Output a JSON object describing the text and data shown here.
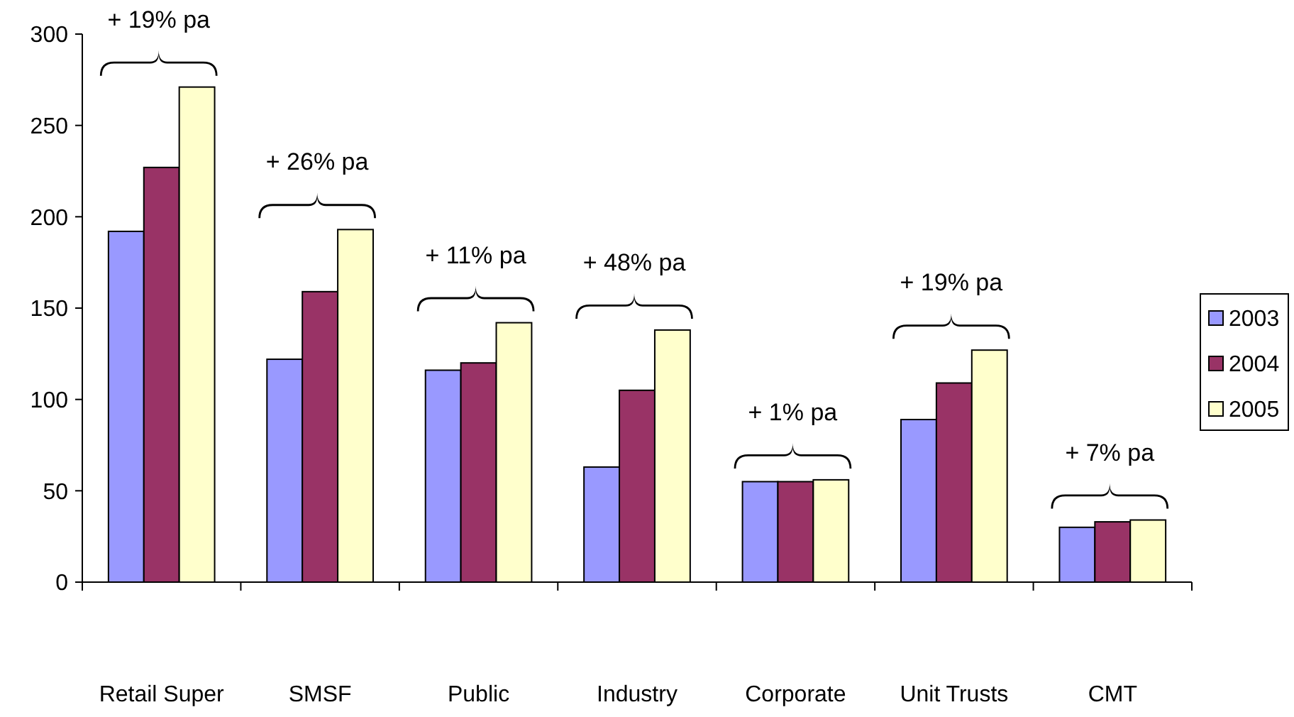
{
  "chart_data": {
    "type": "bar",
    "categories": [
      "Retail Super",
      "SMSF",
      "Public",
      "Industry",
      "Corporate",
      "Unit Trusts",
      "CMT"
    ],
    "series": [
      {
        "name": "2003",
        "color": "#9999ff",
        "values": [
          192,
          122,
          116,
          63,
          55,
          89,
          30
        ]
      },
      {
        "name": "2004",
        "color": "#993366",
        "values": [
          227,
          159,
          120,
          105,
          55,
          109,
          33
        ]
      },
      {
        "name": "2005",
        "color": "#ffffcc",
        "values": [
          271,
          193,
          142,
          138,
          56,
          127,
          34
        ]
      }
    ],
    "ylim": [
      0,
      300
    ],
    "yticks": [
      0,
      50,
      100,
      150,
      200,
      250,
      300
    ],
    "grid": false,
    "legend": "right",
    "annotations": [
      "+ 19% pa",
      "+ 26% pa",
      "+ 11% pa",
      "+ 48% pa",
      "+ 1% pa",
      "+ 19% pa",
      "+ 7% pa"
    ]
  }
}
